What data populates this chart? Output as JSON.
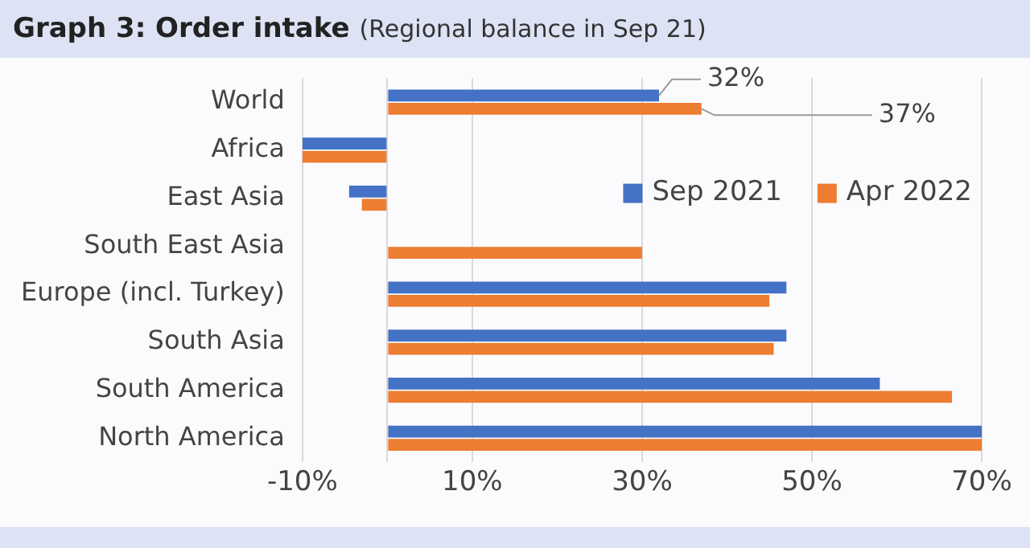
{
  "chart_data": {
    "type": "bar",
    "orientation": "horizontal",
    "title": "Graph 3: Order intake",
    "subtitle": "(Regional balance in Sep 21)",
    "categories": [
      "World",
      "Africa",
      "East Asia",
      "South East Asia",
      "Europe (incl. Turkey)",
      "South Asia",
      "South America",
      "North America"
    ],
    "series": [
      {
        "name": "Sep 2021",
        "color": "#4472c4",
        "values": [
          32,
          -10,
          -4.5,
          null,
          47,
          47,
          58,
          70
        ],
        "value_labels": [
          "32%",
          null,
          null,
          null,
          null,
          null,
          null,
          null
        ]
      },
      {
        "name": "Apr 2022",
        "color": "#ed7d31",
        "values": [
          37,
          -10,
          -3,
          30,
          45,
          45.5,
          66.5,
          70
        ],
        "value_labels": [
          "37%",
          null,
          null,
          null,
          null,
          null,
          null,
          null
        ]
      }
    ],
    "xlim": [
      -10,
      70
    ],
    "xticks": [
      {
        "value": -10,
        "label": "-10%"
      },
      {
        "value": 0,
        "label": null
      },
      {
        "value": 10,
        "label": "10%"
      },
      {
        "value": 30,
        "label": "30%"
      },
      {
        "value": 50,
        "label": "50%"
      },
      {
        "value": 70,
        "label": "70%"
      }
    ],
    "grid": "x",
    "legend": "right"
  }
}
